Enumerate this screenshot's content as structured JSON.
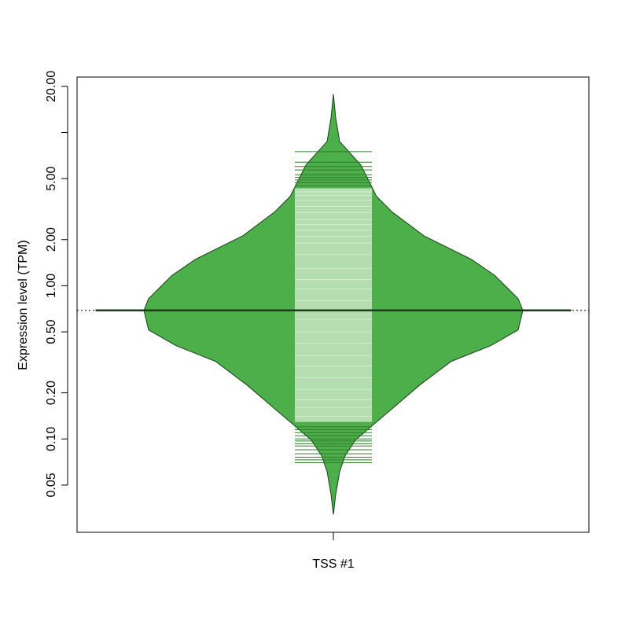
{
  "chart_data": {
    "type": "beanplot",
    "categories": [
      "TSS #1"
    ],
    "ylabel": "Expression level (TPM)",
    "log_y": true,
    "ylim": [
      0.0246,
      23.0
    ],
    "yticks": [
      {
        "value": 0.05,
        "label": "0.05"
      },
      {
        "value": 0.1,
        "label": "0.10"
      },
      {
        "value": 0.2,
        "label": "0.20"
      },
      {
        "value": 0.5,
        "label": "0.50"
      },
      {
        "value": 1,
        "label": "1.00"
      },
      {
        "value": 2,
        "label": "2.00"
      },
      {
        "value": 5,
        "label": "5.00"
      },
      {
        "value": 10,
        "label": null
      },
      {
        "value": 20,
        "label": "20.00"
      }
    ],
    "color": "#4daf4a",
    "line_color_inside": "#b5deb0",
    "line_color_outside": "#2f7a2c",
    "density": {
      "y": [
        17.8,
        12.5,
        8.74,
        6.14,
        3.83,
        3.02,
        2.12,
        1.49,
        1.17,
        0.824,
        0.69,
        0.514,
        0.406,
        0.321,
        0.225,
        0.158,
        0.117,
        0.0984,
        0.0777,
        0.0613,
        0.0431,
        0.0321
      ],
      "width": [
        0,
        0.012,
        0.033,
        0.145,
        0.228,
        0.311,
        0.477,
        0.726,
        0.851,
        0.975,
        1,
        0.975,
        0.83,
        0.622,
        0.456,
        0.311,
        0.187,
        0.116,
        0.062,
        0.033,
        0.012,
        0
      ]
    },
    "observations": [
      7.5,
      6.4,
      6.0,
      5.7,
      5.3,
      5.1,
      4.9,
      4.7,
      4.5,
      4.3,
      4.1,
      3.9,
      3.6,
      3.3,
      3.0,
      2.7,
      2.5,
      2.3,
      2.1,
      1.9,
      1.6,
      1.3,
      1.1,
      0.95,
      0.8,
      0.69,
      0.6,
      0.5,
      0.42,
      0.35,
      0.3,
      0.25,
      0.21,
      0.18,
      0.16,
      0.14,
      0.13,
      0.12,
      0.115,
      0.11,
      0.105,
      0.1,
      0.097,
      0.093,
      0.09,
      0.085,
      0.08,
      0.076,
      0.073,
      0.07
    ],
    "median": 0.69,
    "overall_line": 0.69
  }
}
